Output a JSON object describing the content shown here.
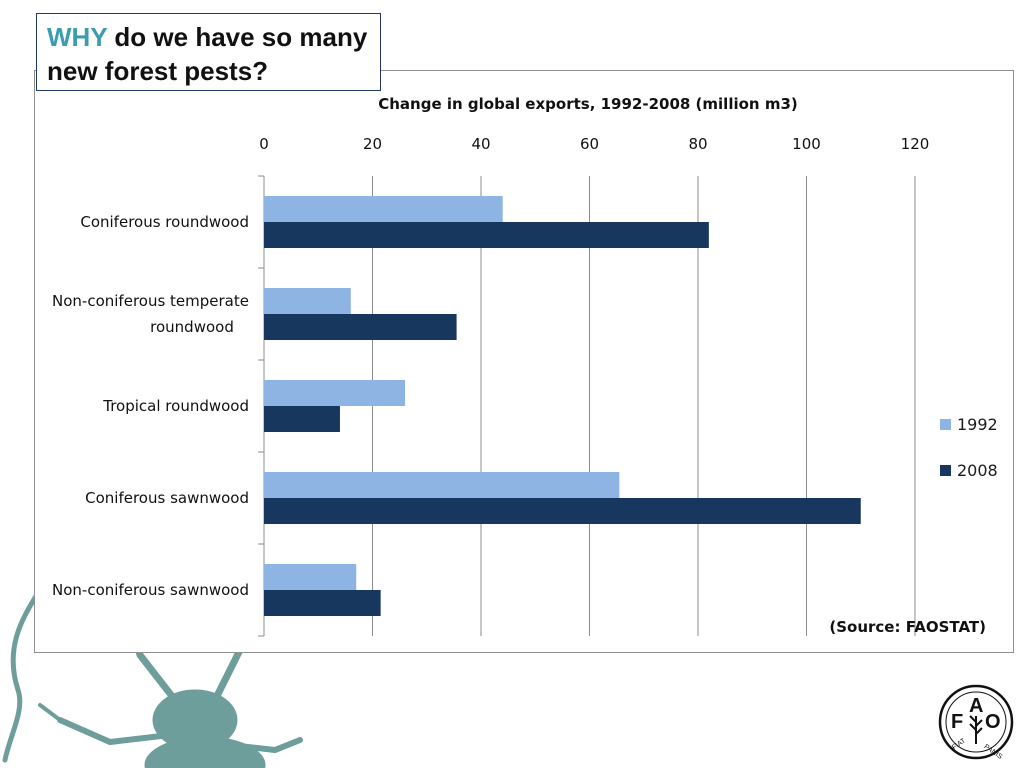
{
  "slide": {
    "title_highlight": "WHY",
    "title_rest": " do we have so many new forest pests?",
    "source_note": "(Source: FAOSTAT)",
    "logo_text": "FAO FIAT PANIS",
    "decor_icon": "longhorn-beetle-icon",
    "highlight_color": "#3a9db0"
  },
  "chart_data": {
    "type": "bar",
    "orientation": "horizontal",
    "title": "Change in global exports, 1992-2008 (million m3)",
    "categories": [
      "Coniferous roundwood",
      "Non-coniferous temperate roundwood",
      "Tropical roundwood",
      "Coniferous sawnwood",
      "Non-coniferous sawnwood"
    ],
    "series": [
      {
        "name": "1992",
        "color": "#8eb4e3",
        "values": [
          44,
          16,
          26,
          65.5,
          17
        ]
      },
      {
        "name": "2008",
        "color": "#17375e",
        "values": [
          82,
          35.5,
          14,
          110,
          21.5
        ]
      }
    ],
    "xlim": [
      0,
      120
    ],
    "xticks": [
      "0",
      "20",
      "40",
      "60",
      "80",
      "100",
      "120"
    ],
    "grid": true,
    "legend_position": "right"
  }
}
